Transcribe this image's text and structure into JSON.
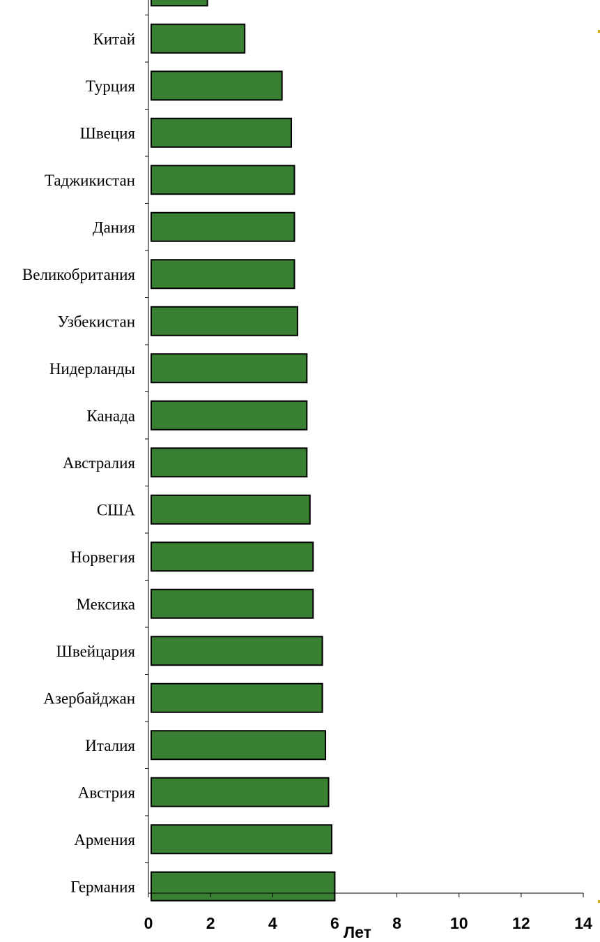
{
  "chart_data": {
    "type": "bar",
    "orientation": "horizontal",
    "title": "",
    "xlabel": "Лет",
    "ylabel": "",
    "xlim": [
      0,
      14
    ],
    "x_ticks": [
      0,
      2,
      4,
      6,
      8,
      10,
      12,
      14
    ],
    "grid": false,
    "legend": "none",
    "bar_color": "#3a8032",
    "bar_edge_color": "#000000",
    "categories": [
      "",
      "Китай",
      "Турция",
      "Швеция",
      "Таджикистан",
      "Дания",
      "Великобритания",
      "Узбекистан",
      "Нидерланды",
      "Канада",
      "Австралия",
      "США",
      "Норвегия",
      "Мексика",
      "Швейцария",
      "Азербайджан",
      "Италия",
      "Австрия",
      "Армения",
      "Германия"
    ],
    "values": [
      1.9,
      3.1,
      4.3,
      4.6,
      4.7,
      4.7,
      4.7,
      4.8,
      5.1,
      5.1,
      5.1,
      5.2,
      5.3,
      5.3,
      5.6,
      5.6,
      5.7,
      5.8,
      5.9,
      6.0
    ]
  }
}
